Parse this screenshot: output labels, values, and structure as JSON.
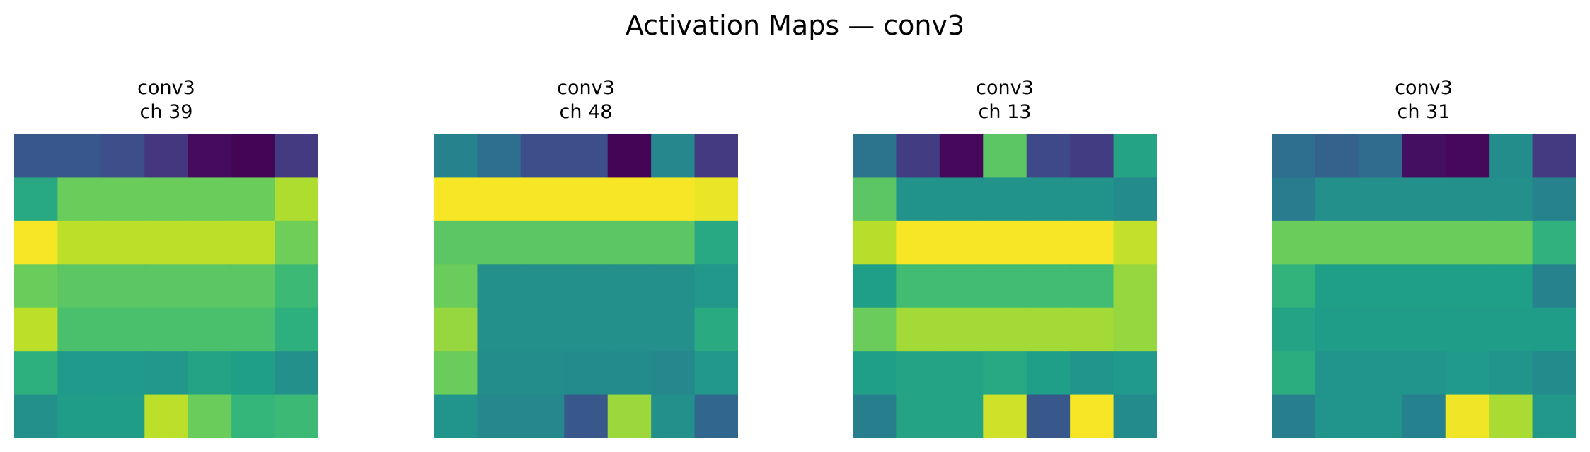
{
  "title": "Activation Maps — conv3",
  "chart_data": {
    "type": "heatmap",
    "colormap": "viridis",
    "value_range": [
      0,
      1
    ],
    "axes_visible": false,
    "panels": [
      {
        "title_line1": "conv3",
        "title_line2": "ch 39",
        "values": [
          [
            0.27,
            0.27,
            0.24,
            0.16,
            0.03,
            0.01,
            0.17
          ],
          [
            0.6,
            0.77,
            0.77,
            0.77,
            0.77,
            0.77,
            0.88
          ],
          [
            0.99,
            0.9,
            0.9,
            0.9,
            0.9,
            0.9,
            0.78
          ],
          [
            0.77,
            0.74,
            0.74,
            0.74,
            0.74,
            0.74,
            0.68
          ],
          [
            0.9,
            0.71,
            0.71,
            0.71,
            0.71,
            0.71,
            0.63
          ],
          [
            0.63,
            0.54,
            0.54,
            0.53,
            0.58,
            0.56,
            0.5
          ],
          [
            0.5,
            0.55,
            0.55,
            0.9,
            0.77,
            0.66,
            0.68
          ]
        ]
      },
      {
        "title_line1": "conv3",
        "title_line2": "ch 48",
        "values": [
          [
            0.45,
            0.36,
            0.24,
            0.24,
            0.01,
            0.47,
            0.17
          ],
          [
            0.99,
            0.99,
            0.99,
            0.99,
            0.99,
            0.99,
            0.97
          ],
          [
            0.74,
            0.74,
            0.74,
            0.74,
            0.74,
            0.74,
            0.6
          ],
          [
            0.77,
            0.5,
            0.5,
            0.5,
            0.5,
            0.5,
            0.53
          ],
          [
            0.84,
            0.5,
            0.5,
            0.5,
            0.5,
            0.5,
            0.61
          ],
          [
            0.77,
            0.49,
            0.49,
            0.48,
            0.48,
            0.47,
            0.53
          ],
          [
            0.52,
            0.47,
            0.47,
            0.27,
            0.85,
            0.5,
            0.33
          ]
        ]
      },
      {
        "title_line1": "conv3",
        "title_line2": "ch 13",
        "values": [
          [
            0.38,
            0.18,
            0.02,
            0.74,
            0.22,
            0.18,
            0.58
          ],
          [
            0.74,
            0.51,
            0.51,
            0.51,
            0.51,
            0.51,
            0.48
          ],
          [
            0.89,
            0.99,
            0.99,
            0.99,
            0.99,
            0.99,
            0.91
          ],
          [
            0.56,
            0.69,
            0.69,
            0.69,
            0.69,
            0.69,
            0.84
          ],
          [
            0.77,
            0.86,
            0.86,
            0.86,
            0.86,
            0.86,
            0.84
          ],
          [
            0.56,
            0.58,
            0.58,
            0.6,
            0.56,
            0.52,
            0.54
          ],
          [
            0.43,
            0.58,
            0.58,
            0.93,
            0.27,
            0.99,
            0.48
          ]
        ]
      },
      {
        "title_line1": "conv3",
        "title_line2": "ch 31",
        "values": [
          [
            0.36,
            0.31,
            0.35,
            0.04,
            0.02,
            0.49,
            0.17
          ],
          [
            0.42,
            0.5,
            0.5,
            0.5,
            0.5,
            0.5,
            0.45
          ],
          [
            0.77,
            0.77,
            0.77,
            0.77,
            0.77,
            0.77,
            0.64
          ],
          [
            0.65,
            0.56,
            0.56,
            0.56,
            0.56,
            0.56,
            0.45
          ],
          [
            0.58,
            0.55,
            0.55,
            0.55,
            0.55,
            0.55,
            0.55
          ],
          [
            0.62,
            0.52,
            0.52,
            0.52,
            0.54,
            0.52,
            0.48
          ],
          [
            0.43,
            0.52,
            0.52,
            0.44,
            0.98,
            0.87,
            0.53
          ]
        ]
      }
    ]
  }
}
